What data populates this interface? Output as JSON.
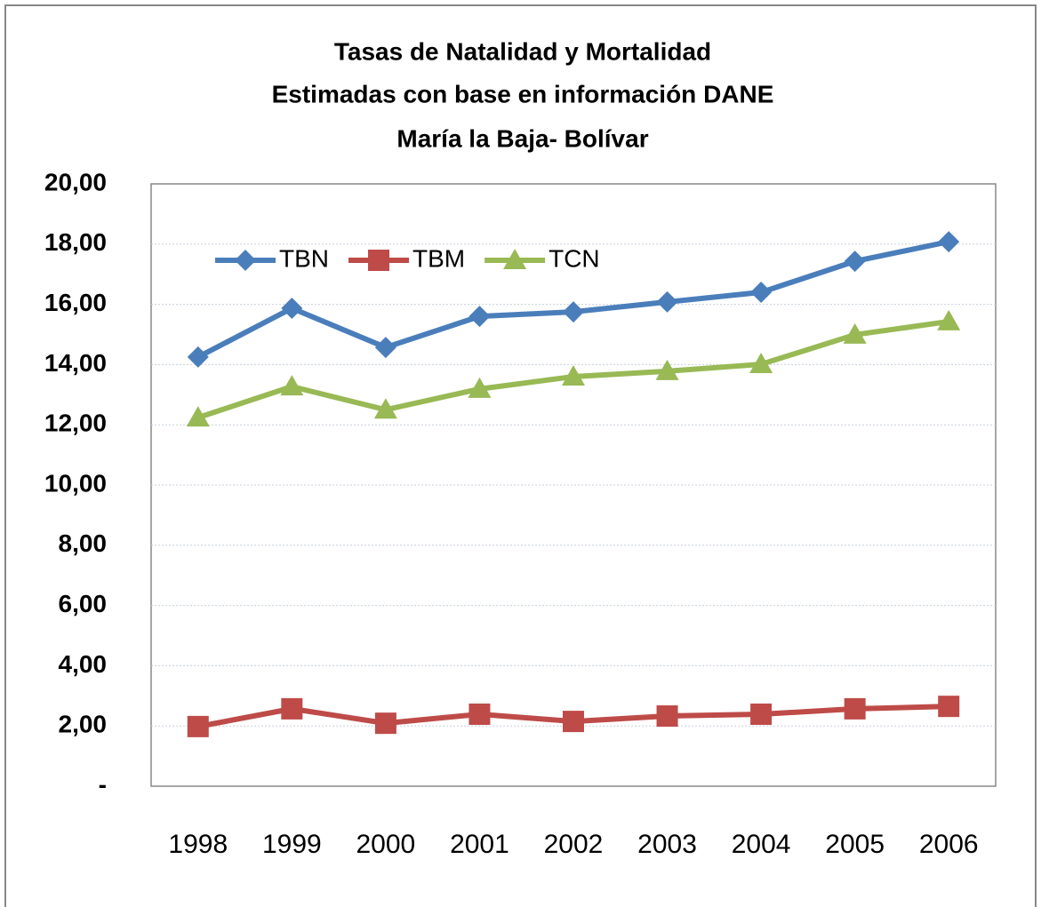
{
  "chart_data": {
    "type": "line",
    "title": "Tasas de Natalidad y Mortalidad",
    "subtitle": "Estimadas con base en información DANE",
    "subtitle2": "María la Baja- Bolívar",
    "categories": [
      "1998",
      "1999",
      "2000",
      "2001",
      "2002",
      "2003",
      "2004",
      "2005",
      "2006"
    ],
    "series": [
      {
        "name": "TBN",
        "color": "#4a7ebb",
        "marker": "diamond",
        "values": [
          14.25,
          15.87,
          14.57,
          15.6,
          15.75,
          16.08,
          16.4,
          17.43,
          18.08
        ]
      },
      {
        "name": "TBM",
        "color": "#be4b48",
        "marker": "square",
        "values": [
          1.98,
          2.57,
          2.09,
          2.39,
          2.15,
          2.33,
          2.39,
          2.57,
          2.65
        ]
      },
      {
        "name": "TCN",
        "color": "#98b954",
        "marker": "triangle",
        "values": [
          12.24,
          13.27,
          12.5,
          13.19,
          13.6,
          13.78,
          14.01,
          14.99,
          15.43
        ]
      }
    ],
    "ylim": [
      0,
      20
    ],
    "yticks": [
      {
        "value": 0,
        "label": "-"
      },
      {
        "value": 2,
        "label": "2,00"
      },
      {
        "value": 4,
        "label": "4,00"
      },
      {
        "value": 6,
        "label": "6,00"
      },
      {
        "value": 8,
        "label": "8,00"
      },
      {
        "value": 10,
        "label": "10,00"
      },
      {
        "value": 12,
        "label": "12,00"
      },
      {
        "value": 14,
        "label": "14,00"
      },
      {
        "value": 16,
        "label": "16,00"
      },
      {
        "value": 18,
        "label": "18,00"
      },
      {
        "value": 20,
        "label": "20,00"
      }
    ],
    "grid": true,
    "legend": "top-left"
  }
}
